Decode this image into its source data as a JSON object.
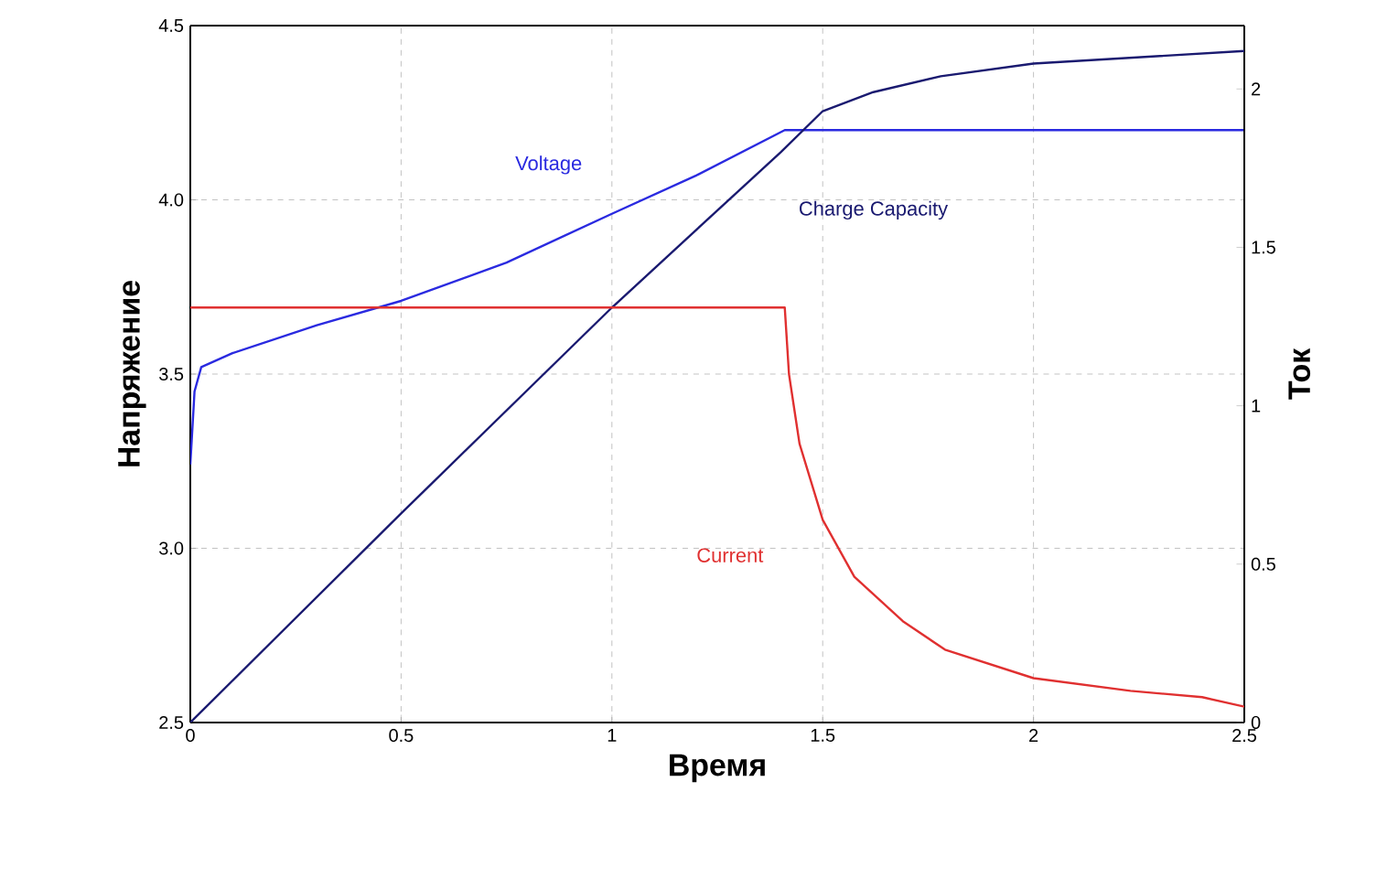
{
  "chart_data": {
    "type": "line",
    "xlabel": "Время",
    "ylabel": "Напряжение",
    "y2label": "Ток",
    "xlim": [
      0,
      2.5
    ],
    "xticks": [
      0,
      0.5,
      1,
      1.5,
      2,
      2.5
    ],
    "ylim": [
      2.5,
      4.5
    ],
    "yticks": [
      2.5,
      {
        "value": 3,
        "label": "3.0"
      },
      3.5,
      {
        "value": 4,
        "label": "4.0"
      },
      4.5
    ],
    "y2lim": [
      0,
      2.2
    ],
    "y2ticks": [
      0,
      0.5,
      1,
      1.5,
      2
    ],
    "grid": true,
    "line_style": "solid",
    "series": [
      {
        "name": "Voltage",
        "color": "#2a2ae0",
        "x": [
          0,
          0.01,
          0.026,
          0.1,
          0.3,
          0.5,
          0.75,
          1.0,
          1.2,
          1.41,
          1.6,
          2.0,
          2.5
        ],
        "values": [
          3.24,
          3.45,
          3.52,
          3.56,
          3.64,
          3.71,
          3.82,
          3.96,
          4.07,
          4.2,
          4.2,
          4.2,
          4.2
        ]
      },
      {
        "name": "Charge Capacity",
        "color": "#1a1a70",
        "axis": "y2",
        "x": [
          0,
          0.5,
          1.0,
          1.4,
          1.5,
          1.62,
          1.78,
          2.0,
          2.25,
          2.5
        ],
        "values": [
          0,
          0.66,
          1.31,
          1.8,
          1.93,
          1.99,
          2.04,
          2.08,
          2.1,
          2.12
        ]
      },
      {
        "name": "Current",
        "color": "#e03030",
        "axis": "y2",
        "x": [
          0,
          1.41,
          1.42,
          1.445,
          1.5,
          1.575,
          1.69,
          1.79,
          2.0,
          2.23,
          2.4,
          2.5
        ],
        "values": [
          1.31,
          1.31,
          1.1,
          0.88,
          0.64,
          0.46,
          0.32,
          0.23,
          0.14,
          0.1,
          0.08,
          0.05
        ]
      }
    ]
  }
}
